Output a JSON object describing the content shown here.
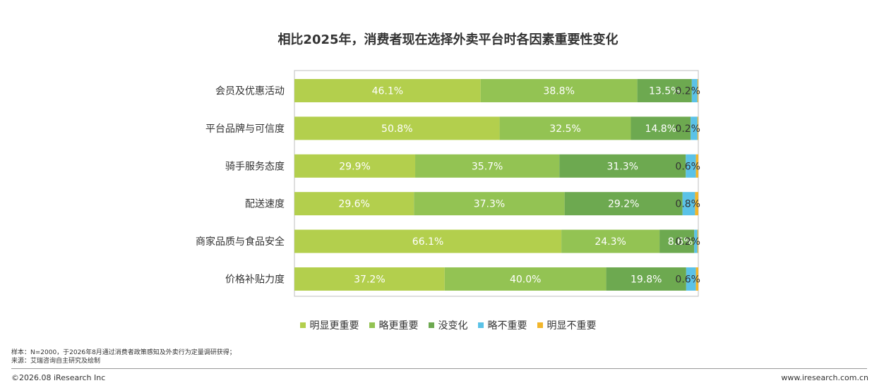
{
  "title": "相比2025年，消费者现在选择外卖平台时各因素重要性变化",
  "colors": {
    "明显更重要": "#b3cf4d",
    "略更重要": "#93c353",
    "没变化": "#6da950",
    "略不重要": "#5bc2e7",
    "明显不重要": "#f2b62c"
  },
  "chart_data": {
    "type": "bar",
    "orientation": "horizontal-stacked-100",
    "categories": [
      "会员及优惠活动",
      "平台品牌与可信度",
      "骑手服务态度",
      "配送速度",
      "商家品质与食品安全",
      "价格补贴力度"
    ],
    "series": [
      {
        "name": "明显更重要",
        "values": [
          46.1,
          50.8,
          29.9,
          29.6,
          66.1,
          37.2
        ]
      },
      {
        "name": "略更重要",
        "values": [
          38.8,
          32.5,
          35.7,
          37.3,
          24.3,
          40.0
        ]
      },
      {
        "name": "没变化",
        "values": [
          13.5,
          14.8,
          31.3,
          29.2,
          8.6,
          19.8
        ]
      },
      {
        "name": "略不重要",
        "values": [
          1.4,
          1.7,
          2.5,
          3.1,
          0.8,
          2.4
        ]
      },
      {
        "name": "明显不重要",
        "values": [
          0.2,
          0.2,
          0.6,
          0.8,
          0.2,
          0.6
        ]
      }
    ],
    "labels": [
      [
        "46.1%",
        "38.8%",
        "13.5%",
        "",
        "0.2%"
      ],
      [
        "50.8%",
        "32.5%",
        "14.8%",
        "",
        "0.2%"
      ],
      [
        "29.9%",
        "35.7%",
        "31.3%",
        "",
        "0.6%"
      ],
      [
        "29.6%",
        "37.3%",
        "29.2%",
        "",
        "0.8%"
      ],
      [
        "66.1%",
        "24.3%",
        "8.6%",
        "",
        "0.2%"
      ],
      [
        "37.2%",
        "40.0%",
        "19.8%",
        "",
        "0.6%"
      ]
    ],
    "xlim": [
      0,
      100
    ]
  },
  "legend": [
    "明显更重要",
    "略更重要",
    "没变化",
    "略不重要",
    "明显不重要"
  ],
  "notes": {
    "sample": "样本：N=2000，于2026年8月通过消费者政策感知及外卖行为定量调研获得；",
    "source": "来源：艾瑞咨询自主研究及绘制"
  },
  "footer": {
    "copyright": "©2026.08 iResearch Inc",
    "website": "www.iresearch.com.cn"
  }
}
